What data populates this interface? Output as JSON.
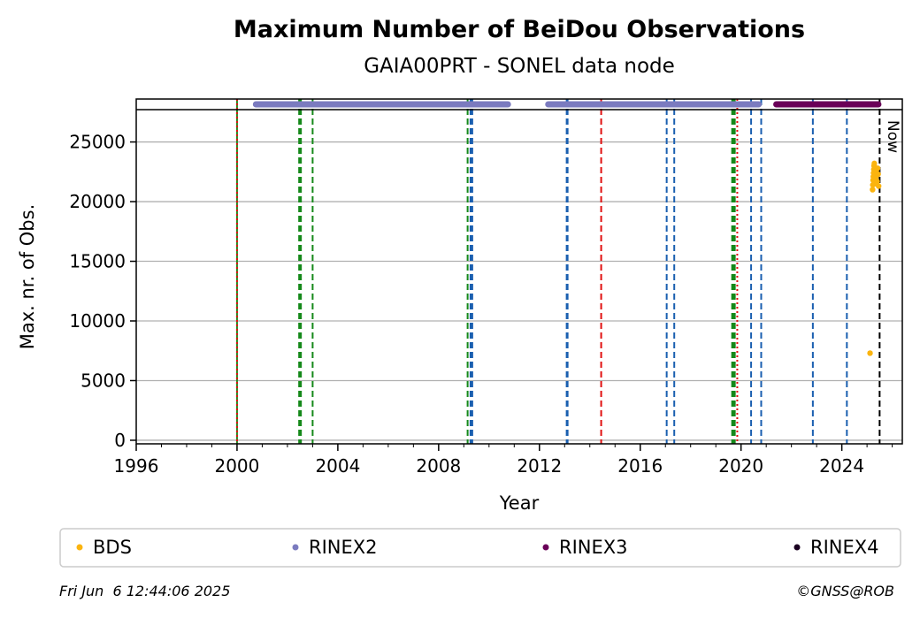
{
  "chart_data": {
    "type": "scatter",
    "title": "Maximum Number of BeiDou Observations",
    "subtitle": "GAIA00PRT - SONEL data node",
    "xlabel": "Year",
    "ylabel": "Max. nr. of Obs.",
    "xlim": [
      1996,
      2026.4
    ],
    "ylim": [
      -300,
      28600
    ],
    "x_ticks": [
      1996,
      2000,
      2004,
      2008,
      2012,
      2016,
      2020,
      2024
    ],
    "y_ticks": [
      0,
      5000,
      10000,
      15000,
      20000,
      25000
    ],
    "grid": "y",
    "legend_position": "bottom",
    "series": [
      {
        "name": "BDS",
        "color": "#fbb40f",
        "points": [
          [
            2025.12,
            7300
          ],
          [
            2025.22,
            21000
          ],
          [
            2025.23,
            21400
          ],
          [
            2025.24,
            21800
          ],
          [
            2025.25,
            22100
          ],
          [
            2025.26,
            22400
          ],
          [
            2025.27,
            22700
          ],
          [
            2025.28,
            23000
          ],
          [
            2025.29,
            23200
          ],
          [
            2025.3,
            22500
          ],
          [
            2025.31,
            21900
          ],
          [
            2025.32,
            21500
          ],
          [
            2025.34,
            22000
          ],
          [
            2025.36,
            22600
          ],
          [
            2025.38,
            22200
          ],
          [
            2025.4,
            21700
          ],
          [
            2025.42,
            22800
          ],
          [
            2025.44,
            22300
          ],
          [
            2025.46,
            21300
          ]
        ]
      },
      {
        "name": "RINEX2",
        "color": "#7b7bbf",
        "ranges": [
          [
            2000.75,
            2010.75
          ],
          [
            2012.35,
            2020.7
          ]
        ]
      },
      {
        "name": "RINEX3",
        "color": "#6a0058",
        "ranges": [
          [
            2021.4,
            2025.45
          ]
        ]
      },
      {
        "name": "RINEX4",
        "color": "#1a0021",
        "ranges": []
      }
    ],
    "vertical_lines": [
      {
        "x": 2000.0,
        "color": "#2a8a1f",
        "style": "solid",
        "width": 2
      },
      {
        "x": 2000.0,
        "color": "#e01010",
        "style": "dotted",
        "width": 2
      },
      {
        "x": 2002.5,
        "color": "#15891a",
        "style": "dashed",
        "width": 4
      },
      {
        "x": 2003.0,
        "color": "#15891a",
        "style": "dashed",
        "width": 2
      },
      {
        "x": 2009.15,
        "color": "#15891a",
        "style": "dashed",
        "width": 2
      },
      {
        "x": 2009.3,
        "color": "#1a5fb0",
        "style": "dashed",
        "width": 4
      },
      {
        "x": 2013.1,
        "color": "#1a5fb0",
        "style": "dashed",
        "width": 3
      },
      {
        "x": 2014.45,
        "color": "#e01010",
        "style": "dashed",
        "width": 2
      },
      {
        "x": 2017.05,
        "color": "#1a5fb0",
        "style": "dashed",
        "width": 2
      },
      {
        "x": 2017.35,
        "color": "#1a5fb0",
        "style": "dashed",
        "width": 2
      },
      {
        "x": 2019.7,
        "color": "#15891a",
        "style": "dashed",
        "width": 5
      },
      {
        "x": 2019.85,
        "color": "#e01010",
        "style": "dotted",
        "width": 2
      },
      {
        "x": 2020.4,
        "color": "#1a5fb0",
        "style": "dashed",
        "width": 2
      },
      {
        "x": 2020.8,
        "color": "#1a5fb0",
        "style": "dashed",
        "width": 2
      },
      {
        "x": 2022.85,
        "color": "#1a5fb0",
        "style": "dashed",
        "width": 2
      },
      {
        "x": 2024.2,
        "color": "#1a5fb0",
        "style": "dashed",
        "width": 2
      },
      {
        "x": 2025.5,
        "color": "#000000",
        "style": "dashed",
        "width": 2
      }
    ],
    "now_label": "Now"
  },
  "footer": {
    "timestamp": "Fri Jun  6 12:44:06 2025",
    "copyright": "©GNSS@ROB"
  }
}
